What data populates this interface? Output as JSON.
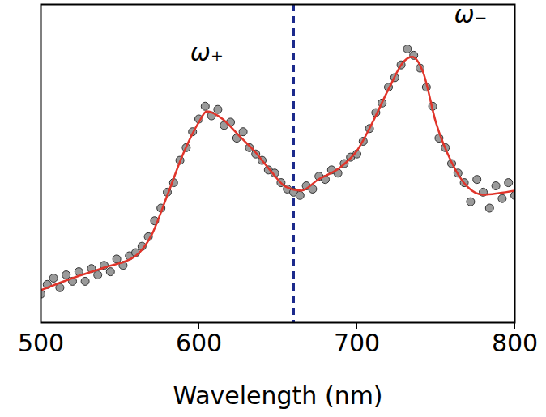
{
  "chart_data": {
    "type": "scatter",
    "x_label": "Wavelength (nm)",
    "xlim": [
      500,
      800
    ],
    "xticks": [
      500,
      600,
      700,
      800
    ],
    "ylim": [
      0,
      100
    ],
    "yticks": [],
    "tick_labels": "x",
    "grid": false,
    "series": [
      {
        "type": "scatter",
        "marker": "circle",
        "color": "#9a9a9a",
        "x": [
          500,
          504,
          508,
          512,
          516,
          520,
          524,
          528,
          532,
          536,
          540,
          544,
          548,
          552,
          556,
          560,
          564,
          568,
          572,
          576,
          580,
          584,
          588,
          592,
          596,
          600,
          604,
          608,
          612,
          616,
          620,
          624,
          628,
          632,
          636,
          640,
          644,
          648,
          652,
          656,
          660,
          664,
          668,
          672,
          676,
          680,
          684,
          688,
          692,
          696,
          700,
          704,
          708,
          712,
          716,
          720,
          724,
          728,
          732,
          736,
          740,
          744,
          748,
          752,
          756,
          760,
          764,
          768,
          772,
          776,
          780,
          784,
          788,
          792,
          796,
          800
        ],
        "values": [
          9,
          12,
          14,
          11,
          15,
          13,
          16,
          13,
          17,
          15,
          18,
          16,
          20,
          18,
          21,
          22,
          24,
          27,
          32,
          36,
          41,
          44,
          51,
          55,
          60,
          64,
          68,
          65,
          67,
          62,
          63,
          58,
          60,
          55,
          53,
          51,
          48,
          47,
          44,
          42,
          41,
          40,
          43,
          42,
          46,
          45,
          48,
          47,
          50,
          52,
          53,
          57,
          61,
          66,
          69,
          74,
          77,
          81,
          86,
          84,
          80,
          74,
          68,
          58,
          55,
          50,
          47,
          44,
          38,
          45,
          41,
          36,
          43,
          39,
          44,
          40
        ]
      },
      {
        "type": "line",
        "line_style": "solid",
        "color": "#e0342a",
        "x": [
          500,
          520,
          540,
          560,
          570,
          580,
          590,
          600,
          605,
          615,
          625,
          635,
          645,
          655,
          665,
          675,
          690,
          700,
          710,
          720,
          730,
          735,
          742,
          750,
          760,
          770,
          780,
          790,
          800
        ],
        "values": [
          10.2,
          14,
          17.3,
          21,
          27.5,
          40,
          53,
          63,
          66.4,
          64,
          59,
          54,
          48,
          42.7,
          41.5,
          44.8,
          49,
          54,
          63,
          73.3,
          82.2,
          83.5,
          78.6,
          63,
          50.4,
          42.7,
          40.2,
          40.7,
          41.5
        ]
      }
    ],
    "reference_line": {
      "x": 660,
      "color": "#1c2a8c",
      "line_style": "dashed"
    },
    "annotations": [
      {
        "text": "ω₊",
        "x": 605,
        "y": 84.7
      },
      {
        "text": "ω₋",
        "x": 772,
        "y": 96.7
      }
    ]
  }
}
